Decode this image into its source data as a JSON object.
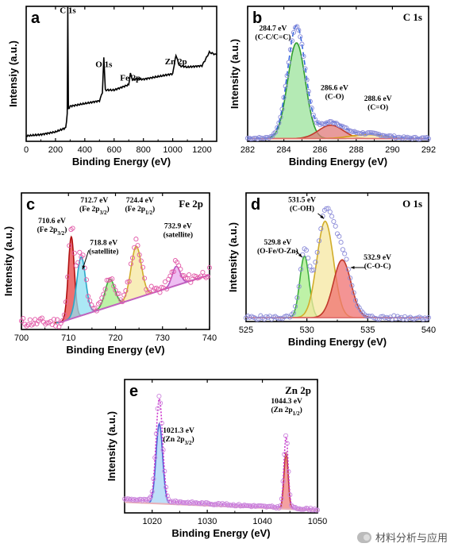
{
  "figure": {
    "panels": [
      {
        "id": "a",
        "letter": "a",
        "title": "",
        "xlabel": "Binding Energy (eV)",
        "ylabel": "Intensiy (a.u.)",
        "xlim": [
          0,
          1300
        ],
        "ylim": [
          0,
          1
        ],
        "xticks": [
          0,
          200,
          400,
          600,
          800,
          1000,
          1200
        ],
        "annotations": [
          {
            "text": "C 1s",
            "x": 284,
            "y": 0.95
          },
          {
            "text": "O 1s",
            "x": 530,
            "y": 0.55
          },
          {
            "text": "Fe 2p",
            "x": 711,
            "y": 0.45
          },
          {
            "text": "Zn 2p",
            "x": 1022,
            "y": 0.57
          }
        ]
      },
      {
        "id": "b",
        "letter": "b",
        "title": "C 1s",
        "xlabel": "Binding Energy (eV)",
        "ylabel": "Intensity (a.u.)",
        "xlim": [
          282,
          292
        ],
        "ylim": [
          0,
          1
        ],
        "xticks": [
          282,
          284,
          286,
          288,
          290,
          292
        ],
        "annotations": [
          {
            "lines": [
              "284.7 eV",
              "(C-C/C=C)"
            ],
            "x": 283.4,
            "y": 0.82
          },
          {
            "lines": [
              "286.6 eV",
              "(C-O)"
            ],
            "x": 286.8,
            "y": 0.38
          },
          {
            "lines": [
              "288.6 eV",
              "(C=O)"
            ],
            "x": 289.2,
            "y": 0.3
          }
        ]
      },
      {
        "id": "c",
        "letter": "c",
        "title": "Fe 2p",
        "xlabel": "Binding Energy (eV)",
        "ylabel": "Intensity (a.u.)",
        "xlim": [
          700,
          740
        ],
        "ylim": [
          0,
          1
        ],
        "xticks": [
          700,
          710,
          720,
          730,
          740
        ],
        "annotations": [
          {
            "lines": [
              "710.6 eV",
              "(Fe 2p3/2)"
            ],
            "x": 706.5,
            "y": 0.78
          },
          {
            "lines": [
              "712.7 eV",
              "(Fe 2p3/2)"
            ],
            "x": 715.5,
            "y": 0.93
          },
          {
            "lines": [
              "718.8 eV",
              "(satellite)"
            ],
            "x": 717.5,
            "y": 0.62
          },
          {
            "lines": [
              "724.4 eV",
              "(Fe 2p1/2)"
            ],
            "x": 725.2,
            "y": 0.93
          },
          {
            "lines": [
              "732.9 eV",
              "(satellite)"
            ],
            "x": 733.3,
            "y": 0.74
          }
        ]
      },
      {
        "id": "d",
        "letter": "d",
        "title": "O 1s",
        "xlabel": "Binding Energy (eV)",
        "ylabel": "Intensity (a.u.)",
        "xlim": [
          525,
          540
        ],
        "ylim": [
          0,
          1
        ],
        "xticks": [
          525,
          530,
          535,
          540
        ],
        "annotations": [
          {
            "lines": [
              "531.5 eV",
              "(C-OH)"
            ],
            "x": 529.6,
            "y": 0.93
          },
          {
            "lines": [
              "529.8 eV",
              "(O-Fe/O-Zn)"
            ],
            "x": 527.6,
            "y": 0.6
          },
          {
            "lines": [
              "532.9 eV",
              "(C-O-C)"
            ],
            "x": 535.8,
            "y": 0.48
          }
        ]
      },
      {
        "id": "e",
        "letter": "e",
        "title": "Zn 2p",
        "xlabel": "Binding Energy (eV)",
        "ylabel": "Intensity (a.u.)",
        "xlim": [
          1015,
          1050
        ],
        "ylim": [
          0,
          1
        ],
        "xticks": [
          1020,
          1030,
          1040,
          1050
        ],
        "annotations": [
          {
            "lines": [
              "1021.3 eV",
              "(Zn 2p3/2)"
            ],
            "x": 1024.8,
            "y": 0.6
          },
          {
            "lines": [
              "1044.3 eV",
              "(Zn 2p1/2)"
            ],
            "x": 1044.4,
            "y": 0.82
          }
        ]
      }
    ],
    "watermark": "材料分析与应用"
  },
  "chart_data": [
    {
      "panel": "a",
      "type": "line",
      "title": "",
      "xlabel": "Binding Energy (eV)",
      "ylabel": "Intensiy (a.u.)",
      "xlim": [
        0,
        1300
      ],
      "ylim": [
        0,
        1
      ],
      "grid": false,
      "series": [
        {
          "name": "",
          "x": [
            0,
            100,
            200,
            270,
            280,
            284,
            288,
            300,
            400,
            500,
            520,
            530,
            540,
            600,
            700,
            711,
            725,
            800,
            900,
            1000,
            1022,
            1045,
            1100,
            1200,
            1250,
            1300
          ],
          "y": [
            0.04,
            0.05,
            0.07,
            0.1,
            0.2,
            1.0,
            0.24,
            0.26,
            0.28,
            0.3,
            0.36,
            0.62,
            0.38,
            0.38,
            0.42,
            0.5,
            0.46,
            0.46,
            0.48,
            0.5,
            0.64,
            0.56,
            0.55,
            0.56,
            0.66,
            0.64
          ],
          "color": "#000000"
        }
      ]
    },
    {
      "panel": "b",
      "type": "line",
      "title": "C 1s",
      "xlabel": "Binding Energy (eV)",
      "ylabel": "Intensity (a.u.)",
      "xlim": [
        282,
        292
      ],
      "ylim": [
        0,
        1
      ],
      "grid": false,
      "baseline": 0.02,
      "peaks": [
        {
          "center": 284.7,
          "height": 0.71,
          "fwhm": 1.15,
          "fill": "#9be39b",
          "stroke": "#2f9e2f"
        },
        {
          "center": 286.6,
          "height": 0.1,
          "fwhm": 1.6,
          "fill": "#e07a7a",
          "stroke": "#c0392b"
        },
        {
          "center": 288.6,
          "height": 0.03,
          "fwhm": 2.2,
          "fill": "#f2e3a0",
          "stroke": "#d4a017"
        }
      ],
      "envelope": {
        "color": "#3366dd",
        "style": "dashed"
      },
      "raw": {
        "color": "#8a8ad8",
        "marker": "circle"
      }
    },
    {
      "panel": "c",
      "type": "line",
      "title": "Fe 2p",
      "xlabel": "Binding Energy (eV)",
      "ylabel": "Intensity (a.u.)",
      "xlim": [
        700,
        740
      ],
      "ylim": [
        0,
        1
      ],
      "grid": false,
      "background": {
        "x": [
          708,
          740
        ],
        "y": [
          0.05,
          0.4
        ],
        "color": "#c061c0"
      },
      "peaks": [
        {
          "center": 710.6,
          "height": 0.6,
          "fwhm": 1.5,
          "fill": "#e84040",
          "stroke": "#b01010"
        },
        {
          "center": 712.7,
          "height": 0.43,
          "fwhm": 2.2,
          "fill": "#8fe0f2",
          "stroke": "#2aa7c8"
        },
        {
          "center": 718.8,
          "height": 0.2,
          "fwhm": 2.4,
          "fill": "#a8ee8a",
          "stroke": "#3fae3f"
        },
        {
          "center": 724.4,
          "height": 0.38,
          "fwhm": 2.6,
          "fill": "#f6e7a0",
          "stroke": "#d1ad2a"
        },
        {
          "center": 732.9,
          "height": 0.14,
          "fwhm": 2.0,
          "fill": "#e8a8ee",
          "stroke": "#b155c2"
        }
      ],
      "raw": {
        "color": "#e25aa8",
        "marker": "circle"
      }
    },
    {
      "panel": "d",
      "type": "line",
      "title": "O 1s",
      "xlabel": "Binding Energy (eV)",
      "ylabel": "Intensity (a.u.)",
      "xlim": [
        525,
        540
      ],
      "ylim": [
        0,
        1
      ],
      "grid": false,
      "baseline": 0.03,
      "peaks": [
        {
          "center": 529.8,
          "height": 0.48,
          "fwhm": 0.9,
          "fill": "#a8ee8a",
          "stroke": "#3fae3f"
        },
        {
          "center": 531.5,
          "height": 0.75,
          "fwhm": 1.6,
          "fill": "#f6e7a0",
          "stroke": "#d1ad2a"
        },
        {
          "center": 532.9,
          "height": 0.45,
          "fwhm": 1.7,
          "fill": "#f07070",
          "stroke": "#c0392b"
        }
      ],
      "raw": {
        "color": "#8a8ad8",
        "marker": "circle"
      }
    },
    {
      "panel": "e",
      "type": "line",
      "title": "Zn 2p",
      "xlabel": "Binding Energy (eV)",
      "ylabel": "Intensity (a.u.)",
      "xlim": [
        1015,
        1050
      ],
      "ylim": [
        0,
        1
      ],
      "grid": false,
      "background": {
        "x": [
          1015,
          1050
        ],
        "y": [
          0.08,
          0.02
        ],
        "color": "#e8b0b8"
      },
      "peaks": [
        {
          "center": 1021.3,
          "height": 0.6,
          "fwhm": 1.4,
          "fill": "#a8d4f6",
          "stroke": "#4f63d6"
        },
        {
          "center": 1044.3,
          "height": 0.42,
          "fwhm": 0.9,
          "fill": "#f08080",
          "stroke": "#c0392b"
        }
      ],
      "envelope": {
        "color": "#cc33cc",
        "style": "dotted"
      },
      "raw": {
        "color": "#cc88dd",
        "marker": "circle"
      }
    }
  ]
}
